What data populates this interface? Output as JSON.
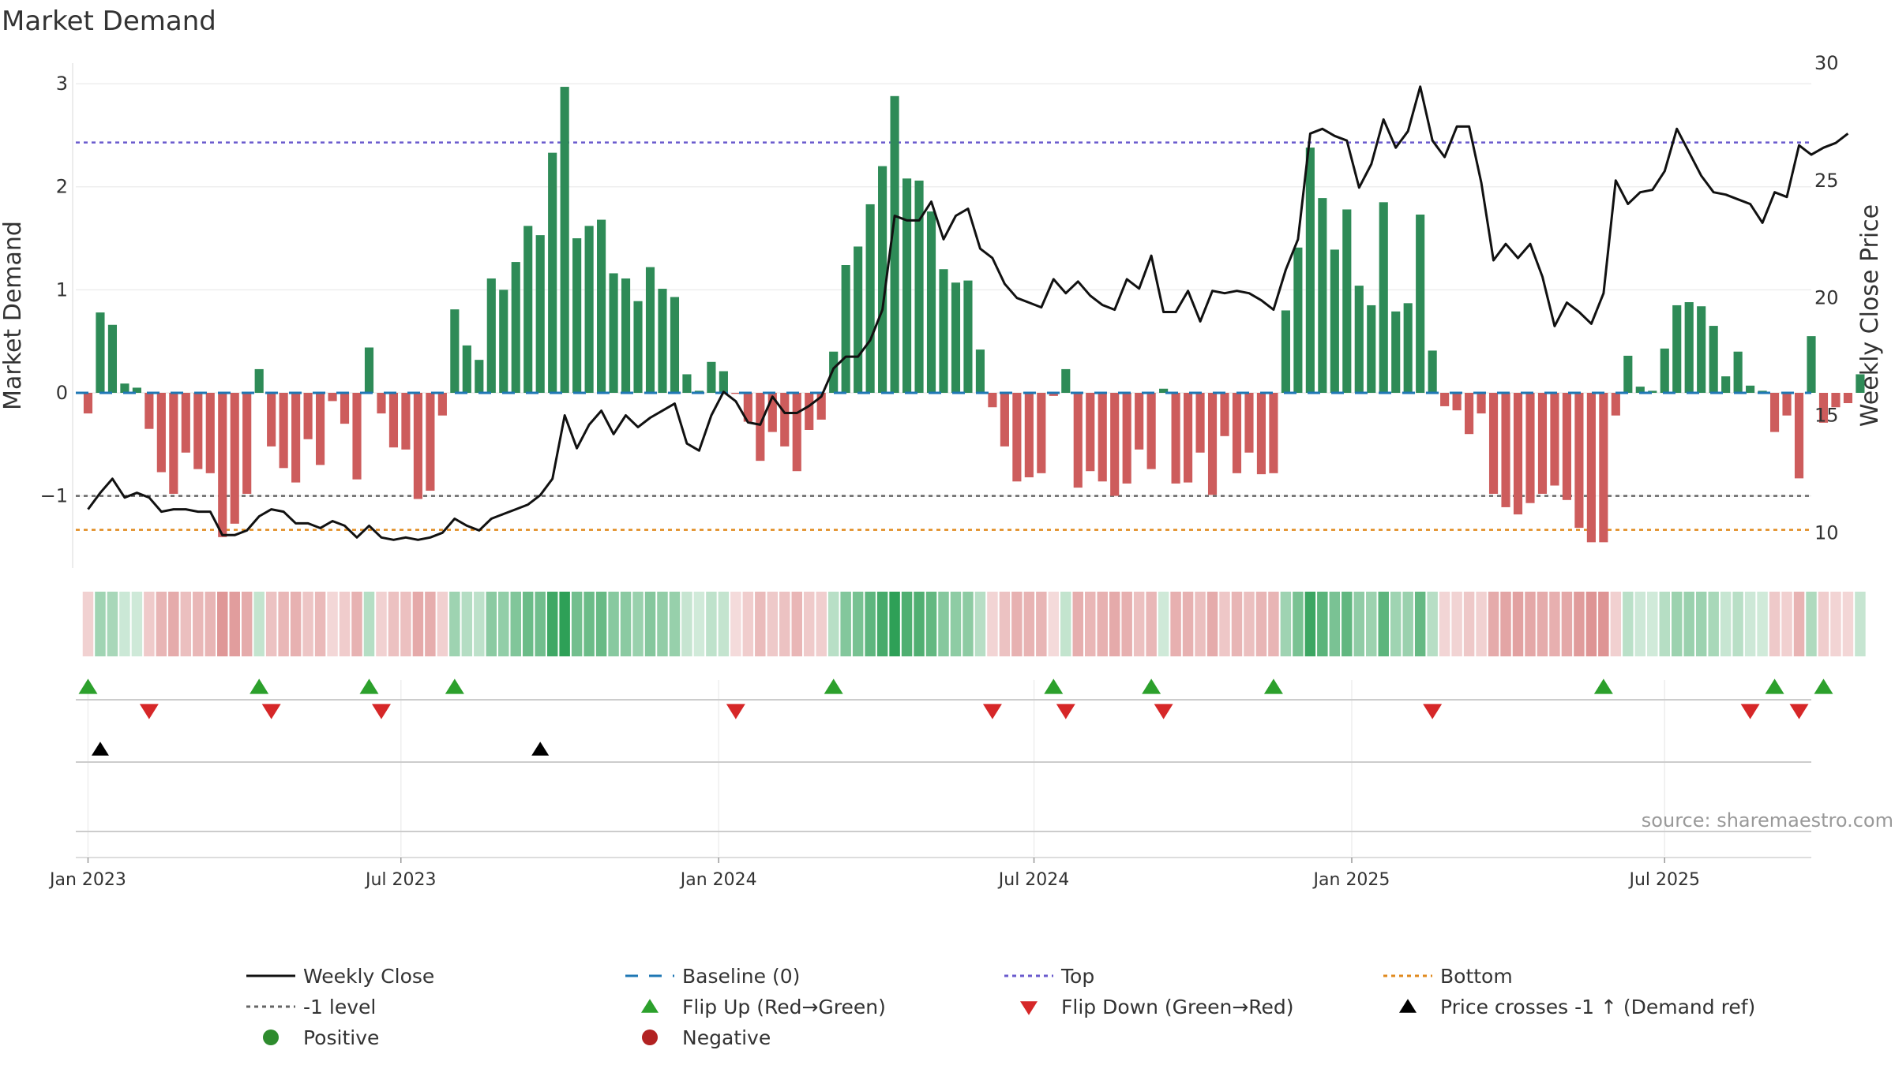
{
  "chart_data": {
    "type": "bar",
    "title": "Market Demand",
    "ylabel": "Market Demand",
    "y2label": "Weekly Close Price",
    "ylim": [
      -1.7,
      3.2
    ],
    "y2lim": [
      8.5,
      30
    ],
    "yticks": [
      3,
      2,
      1,
      0,
      -1
    ],
    "ytick_labels": [
      "3",
      "2",
      "1",
      "0",
      "−1"
    ],
    "y2ticks": [
      30,
      25,
      20,
      15,
      10
    ],
    "y2tick_labels": [
      "30",
      "25",
      "20",
      "15",
      "10"
    ],
    "x_week_range": [
      -1,
      141
    ],
    "xticks": [
      0,
      25.6,
      51.6,
      77.4,
      103.4,
      129.0
    ],
    "xtick_labels": [
      "Jan 2023",
      "Jul 2023",
      "Jan 2024",
      "Jul 2024",
      "Jan 2025",
      "Jul 2025"
    ],
    "series": [
      {
        "name": "Market Demand",
        "values": [
          -0.2,
          0.78,
          0.66,
          0.09,
          0.05,
          -0.35,
          -0.77,
          -0.98,
          -0.58,
          -0.74,
          -0.78,
          -1.4,
          -1.27,
          -0.98,
          0.23,
          -0.52,
          -0.73,
          -0.87,
          -0.45,
          -0.7,
          -0.08,
          -0.3,
          -0.84,
          0.44,
          -0.2,
          -0.53,
          -0.55,
          -1.03,
          -0.95,
          -0.22,
          0.81,
          0.46,
          0.32,
          1.11,
          1.0,
          1.27,
          1.62,
          1.53,
          2.33,
          2.97,
          1.5,
          1.62,
          1.68,
          1.16,
          1.11,
          0.89,
          1.22,
          1.01,
          0.93,
          0.18,
          0.02,
          0.3,
          0.21,
          -0.01,
          -0.28,
          -0.66,
          -0.38,
          -0.52,
          -0.76,
          -0.36,
          -0.26,
          0.4,
          1.24,
          1.42,
          1.83,
          2.2,
          2.88,
          2.08,
          2.06,
          1.76,
          1.2,
          1.07,
          1.09,
          0.42,
          -0.14,
          -0.52,
          -0.86,
          -0.82,
          -0.78,
          -0.03,
          0.23,
          -0.92,
          -0.76,
          -0.86,
          -1.0,
          -0.88,
          -0.55,
          -0.74,
          0.04,
          -0.88,
          -0.87,
          -0.58,
          -0.99,
          -0.42,
          -0.78,
          -0.58,
          -0.79,
          -0.78,
          0.8,
          1.41,
          2.38,
          1.89,
          1.39,
          1.78,
          1.04,
          0.85,
          1.85,
          0.79,
          0.87,
          1.73,
          0.41,
          -0.13,
          -0.17,
          -0.4,
          -0.2,
          -0.98,
          -1.11,
          -1.18,
          -1.07,
          -0.98,
          -0.9,
          -1.04,
          -1.31,
          -1.45,
          -1.45,
          -0.22,
          0.36,
          0.06,
          0.02,
          0.43,
          0.85,
          0.88,
          0.84,
          0.65,
          0.16,
          0.4,
          0.07,
          0.02,
          -0.38,
          -0.22,
          -0.83,
          0.55,
          -0.29,
          -0.14,
          -0.1,
          0.18
        ]
      },
      {
        "name": "Weekly Close",
        "axis": "y2",
        "values": [
          11.0,
          11.7,
          12.3,
          11.5,
          11.7,
          11.5,
          10.9,
          11.0,
          11.0,
          10.9,
          10.9,
          9.9,
          9.9,
          10.1,
          10.7,
          11.0,
          10.9,
          10.4,
          10.4,
          10.2,
          10.5,
          10.3,
          9.8,
          10.3,
          9.8,
          9.7,
          9.8,
          9.7,
          9.8,
          10.0,
          10.6,
          10.3,
          10.1,
          10.6,
          10.8,
          11.0,
          11.2,
          11.6,
          12.3,
          15.0,
          13.6,
          14.6,
          15.2,
          14.2,
          15.0,
          14.5,
          14.9,
          15.2,
          15.5,
          13.8,
          13.5,
          15.0,
          16.0,
          15.6,
          14.7,
          14.6,
          15.8,
          15.1,
          15.1,
          15.4,
          15.8,
          17.0,
          17.5,
          17.5,
          18.2,
          19.5,
          23.5,
          23.3,
          23.3,
          24.1,
          22.5,
          23.5,
          23.8,
          22.1,
          21.7,
          20.6,
          20.0,
          19.8,
          19.6,
          20.8,
          20.2,
          20.7,
          20.1,
          19.7,
          19.5,
          20.8,
          20.4,
          21.8,
          19.4,
          19.4,
          20.3,
          19.0,
          20.3,
          20.2,
          20.3,
          20.2,
          19.9,
          19.5,
          21.2,
          22.5,
          27.0,
          27.2,
          26.9,
          26.7,
          24.7,
          25.7,
          27.6,
          26.4,
          27.1,
          29.0,
          26.7,
          26.0,
          27.3,
          27.3,
          24.9,
          21.6,
          22.3,
          21.7,
          22.3,
          20.9,
          18.8,
          19.8,
          19.4,
          18.9,
          20.2,
          25.0,
          24.0,
          24.5,
          24.6,
          25.4,
          27.2,
          26.2,
          25.2,
          24.5,
          24.4,
          24.2,
          24.0,
          23.2,
          24.5,
          24.3,
          26.5,
          26.1,
          26.4,
          26.6,
          27.0
        ]
      }
    ],
    "reference_lines": [
      {
        "name": "Top",
        "value": 2.43
      },
      {
        "name": "-1 level",
        "value": -1.0
      },
      {
        "name": "Bottom",
        "value": -1.33
      },
      {
        "name": "Baseline (0)",
        "value": 0
      }
    ],
    "flip_up_weeks": [
      0,
      14,
      23,
      30,
      61,
      79,
      87,
      97,
      124,
      138,
      142
    ],
    "flip_down_weeks": [
      5,
      15,
      24,
      53,
      74,
      80,
      88,
      110,
      136,
      140
    ],
    "price_cross_weeks": [
      1,
      37
    ],
    "colors": {
      "positive": "#2e8b57",
      "negative": "#cd5c5c",
      "price": "#111111",
      "baseline": "#1f77b4",
      "top": "#6a5acd",
      "minus_one": "#666666",
      "bottom": "#e08a1e",
      "flip_up": "#2ca02c",
      "flip_down": "#d62728",
      "cross": "#000000",
      "legend_positive": "#2e8b2e",
      "legend_negative": "#b22222"
    },
    "source": "source: sharemaestro.com",
    "legend": [
      {
        "key": "price",
        "label": "Weekly Close"
      },
      {
        "key": "baseline",
        "label": "Baseline (0)"
      },
      {
        "key": "top",
        "label": "Top"
      },
      {
        "key": "bottom",
        "label": "Bottom"
      },
      {
        "key": "minus_one",
        "label": "-1 level"
      },
      {
        "key": "flip_up",
        "label": "Flip Up (Red→Green)"
      },
      {
        "key": "flip_down",
        "label": "Flip Down (Green→Red)"
      },
      {
        "key": "cross",
        "label": "Price crosses -1 ↑ (Demand ref)"
      },
      {
        "key": "legend_positive",
        "label": "Positive"
      },
      {
        "key": "legend_negative",
        "label": "Negative"
      }
    ]
  }
}
